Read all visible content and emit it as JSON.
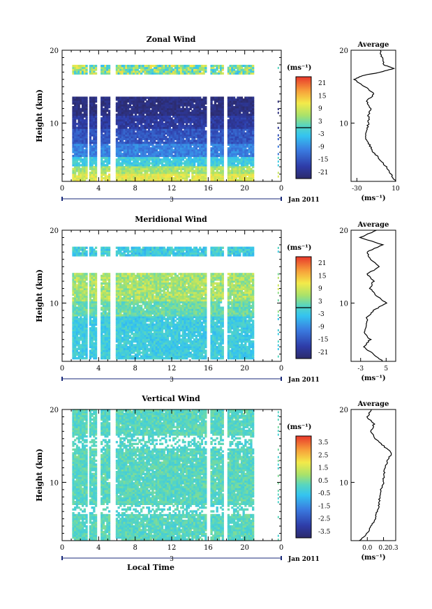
{
  "chart_data": [
    {
      "type": "heatmap",
      "title": "Zonal Wind",
      "ylabel": "Height (km)",
      "ylim": [
        2,
        20
      ],
      "ytick_labels": [
        "10",
        "20"
      ],
      "xlim": [
        0,
        24
      ],
      "xtick_labels": [
        "0",
        "4",
        "8",
        "12",
        "16",
        "20",
        "0"
      ],
      "date_tick_labels": [
        "3",
        "Jan 2011"
      ],
      "colorbar": {
        "unit": "(ms⁻¹)",
        "range": [
          -24,
          24
        ],
        "tick_labels": [
          "21",
          "15",
          "9",
          "3",
          "-3",
          "-9",
          "-15",
          "-21"
        ],
        "zero_line": 0
      },
      "average": {
        "title": "Average",
        "unit": "(ms⁻¹)",
        "xlim": [
          -36,
          10
        ],
        "xtick_labels": [
          "-30",
          "10"
        ],
        "heights": [
          2,
          3,
          4,
          5,
          6,
          7,
          8,
          9,
          10,
          11,
          12,
          13,
          14,
          15,
          16,
          16.5,
          17,
          17.5,
          18,
          19,
          20
        ],
        "values": [
          10,
          5,
          0,
          -6,
          -13,
          -17,
          -21,
          -20,
          -18,
          -18,
          -16,
          -20,
          -12,
          -22,
          -33,
          -25,
          -5,
          8,
          -2,
          -4,
          -6
        ]
      }
    },
    {
      "type": "heatmap",
      "title": "Meridional Wind",
      "ylabel": "Height (km)",
      "ylim": [
        2,
        20
      ],
      "ytick_labels": [
        "10",
        "20"
      ],
      "xlim": [
        0,
        24
      ],
      "xtick_labels": [
        "0",
        "4",
        "8",
        "12",
        "16",
        "20",
        "0"
      ],
      "date_tick_labels": [
        "3",
        "Jan 2011"
      ],
      "colorbar": {
        "unit": "(ms⁻¹)",
        "range": [
          -24,
          24
        ],
        "tick_labels": [
          "21",
          "15",
          "9",
          "3",
          "-3",
          "-9",
          "-15",
          "-21"
        ],
        "zero_line": 0
      },
      "average": {
        "title": "Average",
        "unit": "(ms⁻¹)",
        "xlim": [
          -6,
          8
        ],
        "xtick_labels": [
          "-3",
          "5"
        ],
        "heights": [
          2,
          3,
          4,
          5,
          6,
          7,
          8,
          9,
          10,
          11,
          12,
          13,
          14,
          15,
          16,
          17,
          18,
          19,
          20
        ],
        "values": [
          4,
          1,
          -2,
          0,
          -2,
          -1,
          -1,
          1,
          5,
          2,
          0,
          1,
          -1,
          3,
          0,
          -1,
          4,
          -3,
          2
        ]
      }
    },
    {
      "type": "heatmap",
      "title": "Vertical Wind",
      "xlabel": "Local Time",
      "ylabel": "Height (km)",
      "ylim": [
        2,
        20
      ],
      "ytick_labels": [
        "10",
        "20"
      ],
      "xlim": [
        0,
        24
      ],
      "xtick_labels": [
        "0",
        "4",
        "8",
        "12",
        "16",
        "20",
        "0"
      ],
      "date_tick_labels": [
        "3",
        "Jan 2011"
      ],
      "colorbar": {
        "unit": "(ms⁻¹)",
        "range": [
          -4,
          4
        ],
        "tick_labels": [
          "3.5",
          "2.5",
          "1.5",
          "0.5",
          "-0.5",
          "-1.5",
          "-2.5",
          "-3.5"
        ]
      },
      "average": {
        "title": "Average",
        "unit": "(ms⁻¹)",
        "xlim": [
          -0.2,
          0.35
        ],
        "xtick_labels": [
          "0.0",
          "0.2"
        ],
        "extra_tick_label": "0.3",
        "heights": [
          2,
          3,
          4,
          5,
          6,
          7,
          8,
          9,
          10,
          11,
          12,
          13,
          14,
          15,
          16,
          17,
          18,
          19,
          20
        ],
        "values": [
          -0.1,
          0.0,
          0.05,
          0.1,
          0.12,
          0.15,
          0.15,
          0.17,
          0.2,
          0.2,
          0.22,
          0.25,
          0.3,
          0.2,
          0.1,
          0.05,
          0.08,
          0.0,
          0.05
        ]
      }
    }
  ]
}
